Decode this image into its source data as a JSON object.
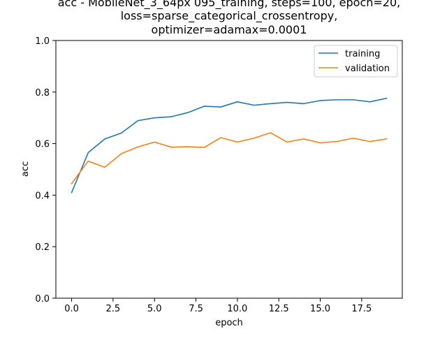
{
  "chart_data": {
    "type": "line",
    "title_lines": [
      "acc - MobileNet_3_64px 095_training, steps=100, epoch=20,",
      "loss=sparse_categorical_crossentropy,",
      "optimizer=adamax=0.0001"
    ],
    "xlabel": "epoch",
    "ylabel": "acc",
    "xlim": [
      -0.95,
      19.95
    ],
    "ylim": [
      0.0,
      1.0
    ],
    "x_ticks": [
      0.0,
      2.5,
      5.0,
      7.5,
      10.0,
      12.5,
      15.0,
      17.5
    ],
    "x_tick_labels": [
      "0.0",
      "2.5",
      "5.0",
      "7.5",
      "10.0",
      "12.5",
      "15.0",
      "17.5"
    ],
    "y_ticks": [
      0.0,
      0.2,
      0.4,
      0.6,
      0.8,
      1.0
    ],
    "y_tick_labels": [
      "0.0",
      "0.2",
      "0.4",
      "0.6",
      "0.8",
      "1.0"
    ],
    "grid": false,
    "legend_position": "top-right",
    "x": [
      0,
      1,
      2,
      3,
      4,
      5,
      6,
      7,
      8,
      9,
      10,
      11,
      12,
      13,
      14,
      15,
      16,
      17,
      18,
      19
    ],
    "series": [
      {
        "name": "training",
        "color": "#1f77b4",
        "values": [
          0.41,
          0.565,
          0.618,
          0.641,
          0.689,
          0.7,
          0.704,
          0.72,
          0.745,
          0.742,
          0.762,
          0.749,
          0.755,
          0.76,
          0.755,
          0.767,
          0.77,
          0.77,
          0.762,
          0.776
        ]
      },
      {
        "name": "validation",
        "color": "#ff7f0e",
        "values": [
          0.445,
          0.532,
          0.508,
          0.561,
          0.587,
          0.606,
          0.586,
          0.588,
          0.585,
          0.623,
          0.606,
          0.621,
          0.642,
          0.606,
          0.618,
          0.603,
          0.608,
          0.621,
          0.608,
          0.618
        ]
      }
    ]
  }
}
